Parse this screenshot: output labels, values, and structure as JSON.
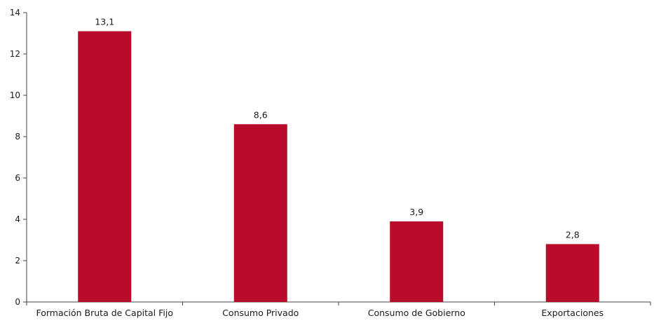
{
  "chart_data": {
    "type": "bar",
    "categories": [
      "Formación Bruta de Capital Fijo",
      "Consumo Privado",
      "Consumo de Gobierno",
      "Exportaciones"
    ],
    "values": [
      13.1,
      8.6,
      3.9,
      2.8
    ],
    "data_labels": [
      "13,1",
      "8,6",
      "3,9",
      "2,8"
    ],
    "title": "",
    "xlabel": "",
    "ylabel": "",
    "ylim": [
      0,
      14
    ],
    "yticks": [
      0,
      2,
      4,
      6,
      8,
      10,
      12,
      14
    ],
    "grid": false,
    "legend": "none",
    "bar_color": "#b90c2a",
    "axis_color": "#444444"
  }
}
